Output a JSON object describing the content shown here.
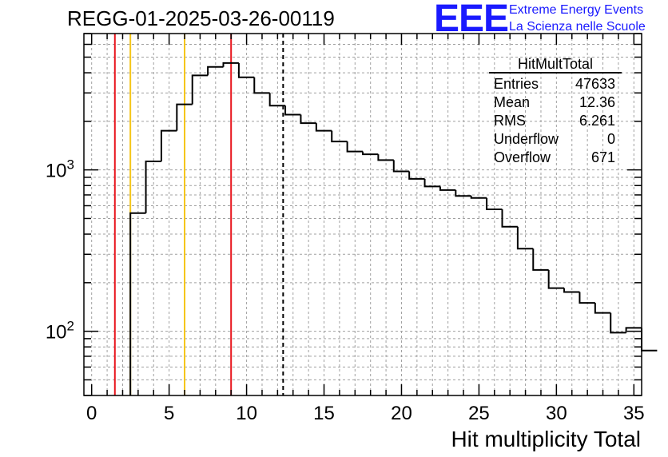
{
  "title": "REGG-01-2025-03-26-00119",
  "logo": {
    "mark": "EEE",
    "line1": "Extreme Energy Events",
    "line2": "La Scienza nelle Scuole",
    "color": "#1a1aff"
  },
  "stats": {
    "title": "HitMultTotal",
    "rows": [
      {
        "label": "Entries",
        "value": "47633"
      },
      {
        "label": "Mean",
        "value": "12.36"
      },
      {
        "label": "RMS",
        "value": "6.261"
      },
      {
        "label": "Underflow",
        "value": "0"
      },
      {
        "label": "Overflow",
        "value": "671"
      }
    ]
  },
  "chart_data": {
    "type": "histogram",
    "title": "REGG-01-2025-03-26-00119",
    "xlabel": "Hit multiplicity Total",
    "ylabel": "",
    "yscale": "log",
    "xlim": [
      -0.5,
      35.5
    ],
    "ylim": [
      40,
      7000
    ],
    "grid": true,
    "bin_edges_start": 2.5,
    "bin_width": 1,
    "counts": [
      540,
      1130,
      1750,
      2550,
      3850,
      4350,
      4600,
      3750,
      3000,
      2500,
      2200,
      1950,
      1750,
      1500,
      1300,
      1250,
      1150,
      980,
      880,
      790,
      750,
      690,
      670,
      570,
      445,
      325,
      240,
      185,
      175,
      150,
      130,
      98,
      105,
      76
    ],
    "xticks": [
      0,
      5,
      10,
      15,
      20,
      25,
      30,
      35
    ],
    "ytick_labels": [
      {
        "value": 100,
        "base": "10",
        "exp": "2"
      },
      {
        "value": 1000,
        "base": "10",
        "exp": "3"
      }
    ],
    "vertical_lines": [
      {
        "x": 1.5,
        "color": "#e8141c",
        "style": "solid"
      },
      {
        "x": 2.5,
        "color": "#f5c518",
        "style": "solid"
      },
      {
        "x": 6.0,
        "color": "#f5c518",
        "style": "solid"
      },
      {
        "x": 9.0,
        "color": "#e8141c",
        "style": "solid"
      },
      {
        "x": 12.36,
        "color": "#000000",
        "style": "dashed"
      }
    ]
  }
}
